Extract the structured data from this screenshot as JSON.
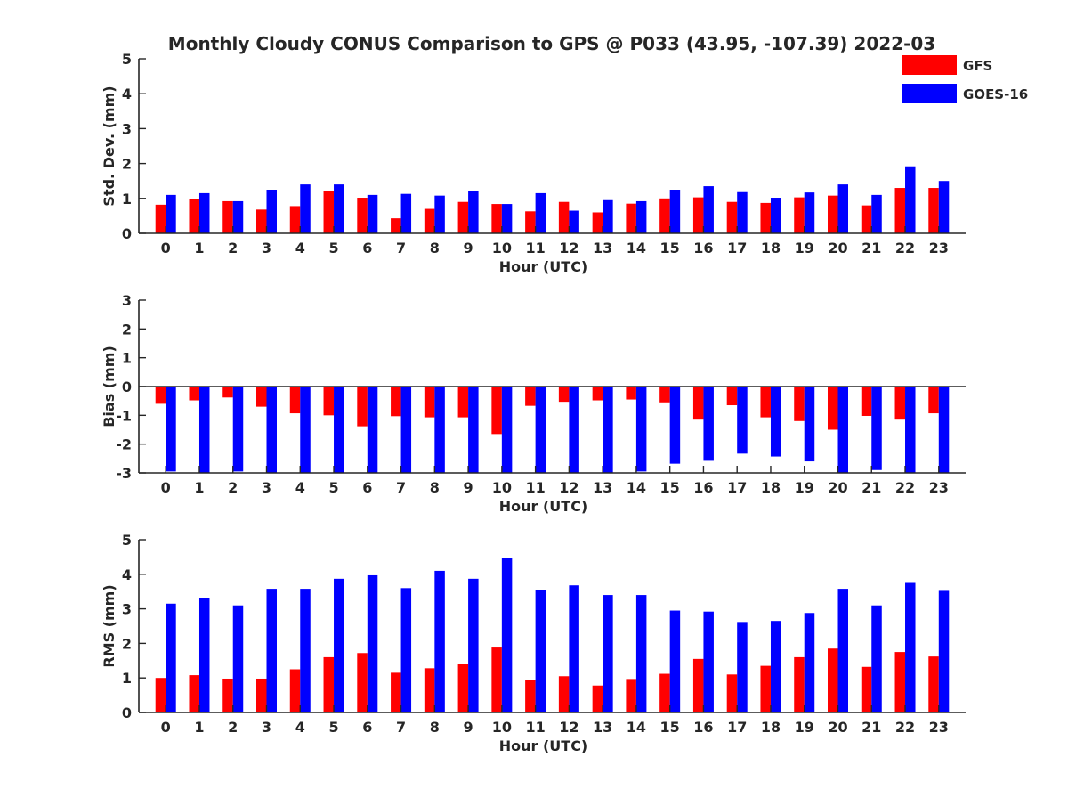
{
  "title": "Monthly Cloudy CONUS Comparison to GPS @ P033 (43.95, -107.39) 2022-03",
  "legend": {
    "placement": "top-right",
    "entries": [
      {
        "name": "GFS",
        "color": "#ff0000"
      },
      {
        "name": "GOES-16",
        "color": "#0000ff"
      }
    ]
  },
  "chart_data": [
    {
      "type": "bar",
      "title": "Monthly Cloudy CONUS Comparison to GPS @ P033 (43.95, -107.39) 2022-03",
      "xlabel": "Hour (UTC)",
      "ylabel": "Std. Dev. (mm)",
      "ylim": [
        0,
        5
      ],
      "yticks": [
        0,
        1,
        2,
        3,
        4,
        5
      ],
      "categories": [
        "0",
        "1",
        "2",
        "3",
        "4",
        "5",
        "6",
        "7",
        "8",
        "9",
        "10",
        "11",
        "12",
        "13",
        "14",
        "15",
        "16",
        "17",
        "18",
        "19",
        "20",
        "21",
        "22",
        "23"
      ],
      "series": [
        {
          "name": "GFS",
          "color": "#ff0000",
          "values": [
            0.82,
            0.97,
            0.92,
            0.68,
            0.78,
            1.2,
            1.02,
            0.43,
            0.7,
            0.9,
            0.84,
            0.63,
            0.9,
            0.6,
            0.85,
            1.0,
            1.03,
            0.9,
            0.87,
            1.03,
            1.08,
            0.8,
            1.3,
            1.3
          ]
        },
        {
          "name": "GOES-16",
          "color": "#0000ff",
          "values": [
            1.1,
            1.15,
            0.92,
            1.25,
            1.4,
            1.4,
            1.1,
            1.13,
            1.08,
            1.2,
            0.84,
            1.15,
            0.65,
            0.95,
            0.92,
            1.25,
            1.35,
            1.18,
            1.02,
            1.17,
            1.4,
            1.1,
            1.92,
            1.5
          ]
        }
      ]
    },
    {
      "type": "bar",
      "xlabel": "Hour (UTC)",
      "ylabel": "Bias (mm)",
      "ylim": [
        -3,
        3
      ],
      "yticks": [
        -3,
        -2,
        -1,
        0,
        1,
        2,
        3
      ],
      "categories": [
        "0",
        "1",
        "2",
        "3",
        "4",
        "5",
        "6",
        "7",
        "8",
        "9",
        "10",
        "11",
        "12",
        "13",
        "14",
        "15",
        "16",
        "17",
        "18",
        "19",
        "20",
        "21",
        "22",
        "23"
      ],
      "series": [
        {
          "name": "GFS",
          "color": "#ff0000",
          "values": [
            -0.6,
            -0.48,
            -0.38,
            -0.7,
            -0.93,
            -1.0,
            -1.38,
            -1.03,
            -1.07,
            -1.07,
            -1.65,
            -0.67,
            -0.53,
            -0.48,
            -0.45,
            -0.55,
            -1.15,
            -0.65,
            -1.07,
            -1.2,
            -1.5,
            -1.02,
            -1.15,
            -0.93
          ]
        },
        {
          "name": "GOES-16",
          "color": "#0000ff",
          "values": [
            -2.95,
            -3.0,
            -2.95,
            -3.0,
            -3.0,
            -3.0,
            -3.0,
            -3.0,
            -3.0,
            -3.0,
            -3.0,
            -3.0,
            -3.0,
            -3.0,
            -2.95,
            -2.68,
            -2.58,
            -2.33,
            -2.43,
            -2.6,
            -3.0,
            -2.9,
            -3.0,
            -3.0
          ]
        }
      ]
    },
    {
      "type": "bar",
      "xlabel": "Hour (UTC)",
      "ylabel": "RMS (mm)",
      "ylim": [
        0,
        5
      ],
      "yticks": [
        0,
        1,
        2,
        3,
        4,
        5
      ],
      "categories": [
        "0",
        "1",
        "2",
        "3",
        "4",
        "5",
        "6",
        "7",
        "8",
        "9",
        "10",
        "11",
        "12",
        "13",
        "14",
        "15",
        "16",
        "17",
        "18",
        "19",
        "20",
        "21",
        "22",
        "23"
      ],
      "series": [
        {
          "name": "GFS",
          "color": "#ff0000",
          "values": [
            1.0,
            1.08,
            0.98,
            0.98,
            1.25,
            1.6,
            1.72,
            1.15,
            1.28,
            1.4,
            1.88,
            0.95,
            1.05,
            0.78,
            0.97,
            1.12,
            1.55,
            1.1,
            1.35,
            1.6,
            1.85,
            1.32,
            1.75,
            1.62
          ]
        },
        {
          "name": "GOES-16",
          "color": "#0000ff",
          "values": [
            3.15,
            3.3,
            3.1,
            3.58,
            3.58,
            3.87,
            3.97,
            3.6,
            4.1,
            3.87,
            4.48,
            3.55,
            3.68,
            3.4,
            3.4,
            2.95,
            2.92,
            2.62,
            2.65,
            2.88,
            3.58,
            3.1,
            3.75,
            3.52
          ]
        }
      ]
    }
  ]
}
